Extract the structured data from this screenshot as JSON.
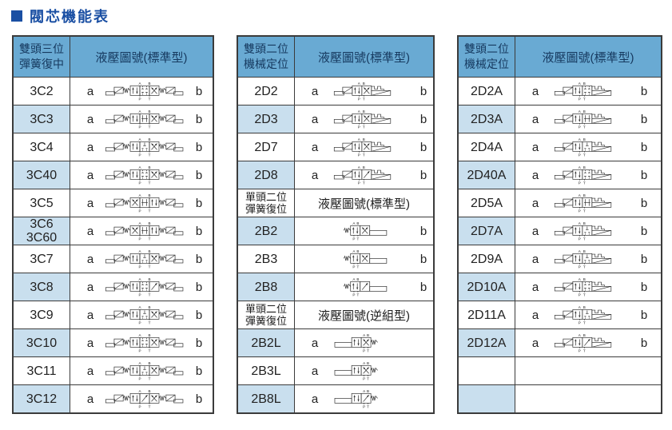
{
  "title": {
    "bullet": "■",
    "text": "閥芯機能表"
  },
  "port_labels": {
    "A": "A",
    "B": "B",
    "P": "P",
    "T": "T"
  },
  "colors": {
    "title_blue": "#1a4fa3",
    "header_bg": "#69aad3",
    "header_text": "#16395f",
    "row_alt_bg": "#c9dfee",
    "border": "#3b3b3b",
    "symbol_stroke": "#333333"
  },
  "tables": [
    {
      "name": "three-position-spring-centered",
      "sections": [
        {
          "header": {
            "type_lines": [
              "雙頭三位",
              "彈簧復中"
            ],
            "diagram": "液壓圖號(標準型)"
          },
          "rows": [
            {
              "code": [
                "3C2"
              ],
              "a": "a",
              "b": "b",
              "alt": false,
              "symbol": {
                "kind": "3C",
                "cells": [
                  "pp",
                  "cc",
                  "xx"
                ]
              }
            },
            {
              "code": [
                "3C3"
              ],
              "a": "a",
              "b": "b",
              "alt": true,
              "symbol": {
                "kind": "3C",
                "cells": [
                  "pp",
                  "oo",
                  "xx"
                ]
              }
            },
            {
              "code": [
                "3C4"
              ],
              "a": "a",
              "b": "b",
              "alt": false,
              "symbol": {
                "kind": "3C",
                "cells": [
                  "pp",
                  "pt",
                  "xx"
                ]
              }
            },
            {
              "code": [
                "3C40"
              ],
              "a": "a",
              "b": "b",
              "alt": true,
              "symbol": {
                "kind": "3C",
                "cells": [
                  "pp",
                  "cc",
                  "xx"
                ]
              }
            },
            {
              "code": [
                "3C5"
              ],
              "a": "a",
              "b": "b",
              "alt": false,
              "symbol": {
                "kind": "3C",
                "cells": [
                  "xx",
                  "oo",
                  "pp"
                ]
              }
            },
            {
              "code": [
                "3C6",
                "3C60"
              ],
              "a": "a",
              "b": "b",
              "alt": true,
              "symbol": {
                "kind": "3C",
                "cells": [
                  "xx",
                  "oo",
                  "pp"
                ]
              }
            },
            {
              "code": [
                "3C7"
              ],
              "a": "a",
              "b": "b",
              "alt": false,
              "symbol": {
                "kind": "3C",
                "cells": [
                  "pp",
                  "pt",
                  "xx"
                ]
              }
            },
            {
              "code": [
                "3C8"
              ],
              "a": "a",
              "b": "b",
              "alt": true,
              "symbol": {
                "kind": "3C",
                "cells": [
                  "pp",
                  "cc",
                  "dg"
                ]
              }
            },
            {
              "code": [
                "3C9"
              ],
              "a": "a",
              "b": "b",
              "alt": false,
              "symbol": {
                "kind": "3C",
                "cells": [
                  "pp",
                  "pt",
                  "xx"
                ]
              }
            },
            {
              "code": [
                "3C10"
              ],
              "a": "a",
              "b": "b",
              "alt": true,
              "symbol": {
                "kind": "3C",
                "cells": [
                  "pp",
                  "cc",
                  "xx"
                ]
              }
            },
            {
              "code": [
                "3C11"
              ],
              "a": "a",
              "b": "b",
              "alt": false,
              "symbol": {
                "kind": "3C",
                "cells": [
                  "pp",
                  "pt",
                  "xx"
                ]
              }
            },
            {
              "code": [
                "3C12"
              ],
              "a": "a",
              "b": "b",
              "alt": true,
              "symbol": {
                "kind": "3C",
                "cells": [
                  "pp",
                  "dg",
                  "xx"
                ]
              }
            }
          ]
        }
      ]
    },
    {
      "name": "two-position-middle",
      "sections": [
        {
          "header": {
            "type_lines": [
              "雙頭二位",
              "機械定位"
            ],
            "diagram": "液壓圖號(標準型)"
          },
          "rows": [
            {
              "code": [
                "2D2"
              ],
              "a": "a",
              "b": "b",
              "alt": false,
              "symbol": {
                "kind": "2D",
                "cells": [
                  "pp",
                  "xx"
                ]
              }
            },
            {
              "code": [
                "2D3"
              ],
              "a": "a",
              "b": "b",
              "alt": true,
              "symbol": {
                "kind": "2D",
                "cells": [
                  "pp",
                  "xx"
                ]
              }
            },
            {
              "code": [
                "2D7"
              ],
              "a": "a",
              "b": "b",
              "alt": false,
              "symbol": {
                "kind": "2D",
                "cells": [
                  "pp",
                  "xx"
                ]
              }
            },
            {
              "code": [
                "2D8"
              ],
              "a": "a",
              "b": "b",
              "alt": true,
              "symbol": {
                "kind": "2D",
                "cells": [
                  "pp",
                  "dg"
                ]
              }
            }
          ]
        },
        {
          "header": {
            "type_lines": [
              "單頭二位",
              "彈簧復位"
            ],
            "diagram": "液壓圖號(標準型)"
          },
          "rows": [
            {
              "code": [
                "2B2"
              ],
              "a": "",
              "b": "b",
              "alt": true,
              "symbol": {
                "kind": "2B",
                "cells": [
                  "pp",
                  "xx"
                ]
              }
            },
            {
              "code": [
                "2B3"
              ],
              "a": "",
              "b": "b",
              "alt": false,
              "symbol": {
                "kind": "2B",
                "cells": [
                  "pp",
                  "xx"
                ]
              }
            },
            {
              "code": [
                "2B8"
              ],
              "a": "",
              "b": "b",
              "alt": true,
              "symbol": {
                "kind": "2B",
                "cells": [
                  "pp",
                  "dg"
                ]
              }
            }
          ]
        },
        {
          "header": {
            "type_lines": [
              "單頭二位",
              "彈簧復位"
            ],
            "diagram": "液壓圖號(逆組型)"
          },
          "rows": [
            {
              "code": [
                "2B2L"
              ],
              "a": "a",
              "b": "",
              "alt": true,
              "symbol": {
                "kind": "2BL",
                "cells": [
                  "pp",
                  "xx"
                ]
              }
            },
            {
              "code": [
                "2B3L"
              ],
              "a": "a",
              "b": "",
              "alt": false,
              "symbol": {
                "kind": "2BL",
                "cells": [
                  "pp",
                  "xx"
                ]
              }
            },
            {
              "code": [
                "2B8L"
              ],
              "a": "a",
              "b": "",
              "alt": true,
              "symbol": {
                "kind": "2BL",
                "cells": [
                  "pp",
                  "dg"
                ]
              }
            }
          ]
        }
      ]
    },
    {
      "name": "two-position-mechanical-right",
      "sections": [
        {
          "header": {
            "type_lines": [
              "雙頭二位",
              "機械定位"
            ],
            "diagram": "液壓圖號(標準型)"
          },
          "rows": [
            {
              "code": [
                "2D2A"
              ],
              "a": "a",
              "b": "b",
              "alt": false,
              "symbol": {
                "kind": "2D",
                "cells": [
                  "pp",
                  "cc"
                ]
              }
            },
            {
              "code": [
                "2D3A"
              ],
              "a": "a",
              "b": "b",
              "alt": true,
              "symbol": {
                "kind": "2D",
                "cells": [
                  "pp",
                  "oo"
                ]
              }
            },
            {
              "code": [
                "2D4A"
              ],
              "a": "a",
              "b": "b",
              "alt": false,
              "symbol": {
                "kind": "2D",
                "cells": [
                  "pp",
                  "pt"
                ]
              }
            },
            {
              "code": [
                "2D40A"
              ],
              "a": "a",
              "b": "b",
              "alt": true,
              "symbol": {
                "kind": "2D",
                "cells": [
                  "pp",
                  "cc"
                ]
              }
            },
            {
              "code": [
                "2D5A"
              ],
              "a": "a",
              "b": "b",
              "alt": false,
              "symbol": {
                "kind": "2D",
                "cells": [
                  "pp",
                  "oo"
                ]
              }
            },
            {
              "code": [
                "2D7A"
              ],
              "a": "a",
              "b": "b",
              "alt": true,
              "symbol": {
                "kind": "2D",
                "cells": [
                  "pp",
                  "pt"
                ]
              }
            },
            {
              "code": [
                "2D9A"
              ],
              "a": "a",
              "b": "b",
              "alt": false,
              "symbol": {
                "kind": "2D",
                "cells": [
                  "pp",
                  "pt"
                ]
              }
            },
            {
              "code": [
                "2D10A"
              ],
              "a": "a",
              "b": "b",
              "alt": true,
              "symbol": {
                "kind": "2D",
                "cells": [
                  "pp",
                  "cc"
                ]
              }
            },
            {
              "code": [
                "2D11A"
              ],
              "a": "a",
              "b": "b",
              "alt": false,
              "symbol": {
                "kind": "2D",
                "cells": [
                  "pp",
                  "pt"
                ]
              }
            },
            {
              "code": [
                "2D12A"
              ],
              "a": "a",
              "b": "b",
              "alt": true,
              "symbol": {
                "kind": "2D",
                "cells": [
                  "pp",
                  "dg"
                ]
              }
            },
            {
              "code": [],
              "a": "",
              "b": "",
              "alt": false,
              "symbol": null
            },
            {
              "code": [],
              "a": "",
              "b": "",
              "alt": true,
              "symbol": null
            }
          ]
        }
      ]
    }
  ]
}
